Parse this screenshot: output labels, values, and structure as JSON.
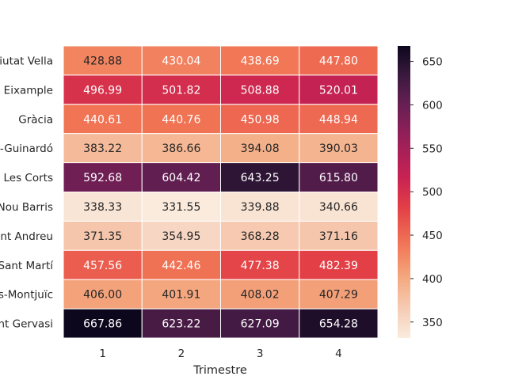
{
  "chart_data": {
    "type": "heatmap",
    "title": "",
    "xlabel": "Trimestre",
    "ylabel": "",
    "x_categories": [
      "1",
      "2",
      "3",
      "4"
    ],
    "y_categories": [
      "Ciutat Vella",
      "Eixample",
      "Gràcia",
      "Horta-Guinardó",
      "Les Corts",
      "Nou Barris",
      "Sant Andreu",
      "Sant Martí",
      "Sants-Montjuïc",
      "Sarrià-Sant Gervasi"
    ],
    "values": [
      [
        428.88,
        430.04,
        438.69,
        447.8
      ],
      [
        496.99,
        501.82,
        508.88,
        520.01
      ],
      [
        440.61,
        440.76,
        450.98,
        448.94
      ],
      [
        383.22,
        386.66,
        394.08,
        390.03
      ],
      [
        592.68,
        604.42,
        643.25,
        615.8
      ],
      [
        338.33,
        331.55,
        339.88,
        340.66
      ],
      [
        371.35,
        354.95,
        368.28,
        371.16
      ],
      [
        457.56,
        442.46,
        477.38,
        482.39
      ],
      [
        406.0,
        401.91,
        408.02,
        407.29
      ],
      [
        667.86,
        623.22,
        627.09,
        654.28
      ]
    ],
    "value_format": "2 decimals",
    "colormap": "rocket_r",
    "colorbar": {
      "min": 331.55,
      "max": 667.86,
      "ticks": [
        350,
        400,
        450,
        500,
        550,
        600,
        650
      ]
    },
    "grid": false,
    "cell_borders_color": "#ffffff"
  }
}
